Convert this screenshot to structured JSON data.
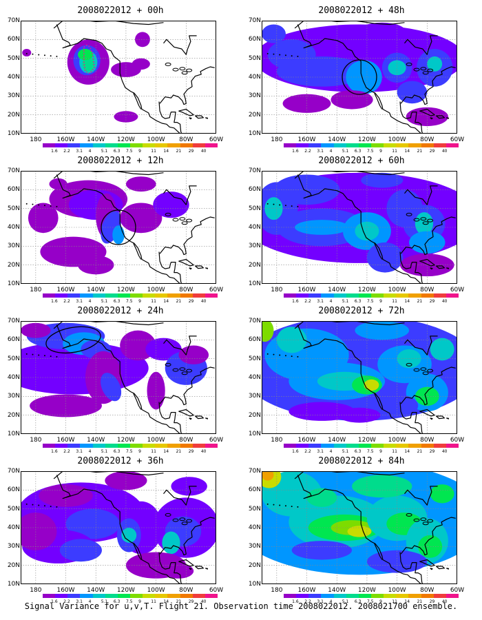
{
  "panels": [
    {
      "title": "2008022012 + 00h",
      "target": "dots"
    },
    {
      "title": "2008022012 + 12h",
      "target": "circle-ca"
    },
    {
      "title": "2008022012 + 24h",
      "target": "ellipse-ak"
    },
    {
      "title": "2008022012 + 36h",
      "target": "none"
    },
    {
      "title": "2008022012 + 48h",
      "target": "circle-ca"
    },
    {
      "title": "2008022012 + 60h",
      "target": "none"
    },
    {
      "title": "2008022012 + 72h",
      "target": "none"
    },
    {
      "title": "2008022012 + 84h",
      "target": "none"
    }
  ],
  "lat_labels": [
    "70N",
    "60N",
    "50N",
    "40N",
    "30N",
    "20N",
    "10N"
  ],
  "lon_labels": [
    "180",
    "160W",
    "140W",
    "120W",
    "100W",
    "80W",
    "60W"
  ],
  "colorbar": {
    "levels": [
      "1.6",
      "2.2",
      "3.1",
      "4",
      "5.1",
      "6.3",
      "7.5",
      "9",
      "11",
      "14",
      "21",
      "29",
      "40"
    ],
    "colors": [
      "#9600c8",
      "#7300ff",
      "#3c3cff",
      "#0096ff",
      "#00c8c8",
      "#00dc8c",
      "#00e650",
      "#7ddc00",
      "#c8dc00",
      "#e6c800",
      "#f0a000",
      "#f07800",
      "#f03c3c",
      "#f0148c"
    ]
  },
  "footer": "Signal Variance for u,v,T. Flight 21. Observation time 2008022012. 2008021700 ensemble."
}
